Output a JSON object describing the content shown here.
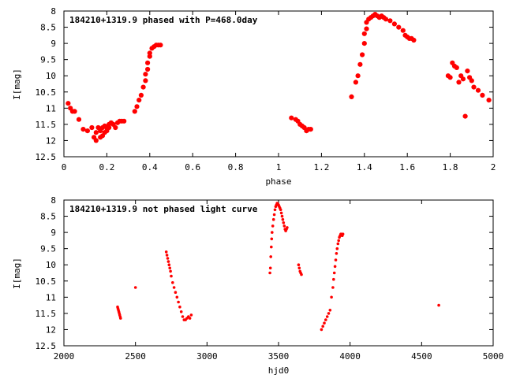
{
  "chart_data": [
    {
      "type": "scatter",
      "title": "184210+1319.9 phased with P=468.0day",
      "xlabel": "phase",
      "ylabel": "I[mag]",
      "xlim": [
        0,
        2
      ],
      "ylim": [
        12.5,
        8
      ],
      "y_inverted": true,
      "grid": false,
      "marker_color": "#ff0000",
      "xticks": [
        "0",
        "0.2",
        "0.4",
        "0.6",
        "0.8",
        "1",
        "1.2",
        "1.4",
        "1.6",
        "1.8",
        "2"
      ],
      "yticks": [
        "8",
        "8.5",
        "9",
        "9.5",
        "10",
        "10.5",
        "11",
        "11.5",
        "12",
        "12.5"
      ],
      "series": [
        {
          "x": [
            0.02,
            0.03,
            0.04,
            0.05,
            0.07,
            0.09,
            0.11,
            0.13,
            0.14,
            0.15,
            0.15,
            0.16,
            0.17,
            0.17,
            0.18,
            0.18,
            0.19,
            0.19,
            0.2,
            0.2,
            0.21,
            0.21,
            0.22,
            0.23,
            0.24,
            0.25,
            0.26,
            0.27,
            0.28,
            0.33,
            0.34,
            0.35,
            0.36,
            0.37,
            0.38,
            0.38,
            0.39,
            0.39,
            0.4,
            0.4,
            0.41,
            0.42,
            0.43,
            0.44,
            0.45,
            1.06,
            1.08,
            1.09,
            1.1,
            1.11,
            1.12,
            1.13,
            1.14,
            1.15,
            1.34,
            1.36,
            1.37,
            1.38,
            1.39,
            1.4,
            1.4,
            1.41,
            1.41,
            1.42,
            1.43,
            1.44,
            1.45,
            1.46,
            1.47,
            1.48,
            1.49,
            1.5,
            1.52,
            1.54,
            1.56,
            1.58,
            1.59,
            1.6,
            1.61,
            1.62,
            1.63,
            1.79,
            1.8,
            1.81,
            1.82,
            1.83,
            1.84,
            1.85,
            1.86,
            1.87,
            1.88,
            1.89,
            1.9,
            1.91,
            1.93,
            1.95,
            1.98
          ],
          "y": [
            10.85,
            11.0,
            11.1,
            11.1,
            11.35,
            11.65,
            11.7,
            11.6,
            11.9,
            12.0,
            11.75,
            11.6,
            11.9,
            11.7,
            11.6,
            11.85,
            11.75,
            11.55,
            11.7,
            11.6,
            11.6,
            11.5,
            11.45,
            11.5,
            11.6,
            11.45,
            11.4,
            11.4,
            11.4,
            11.1,
            10.95,
            10.75,
            10.6,
            10.35,
            10.15,
            9.95,
            9.8,
            9.6,
            9.4,
            9.3,
            9.15,
            9.1,
            9.05,
            9.05,
            9.05,
            11.3,
            11.35,
            11.4,
            11.5,
            11.55,
            11.6,
            11.7,
            11.65,
            11.65,
            10.65,
            10.2,
            10.0,
            9.65,
            9.35,
            9.0,
            8.7,
            8.55,
            8.35,
            8.25,
            8.2,
            8.15,
            8.1,
            8.15,
            8.2,
            8.15,
            8.2,
            8.25,
            8.3,
            8.4,
            8.5,
            8.6,
            8.75,
            8.8,
            8.85,
            8.85,
            8.9,
            10.0,
            10.05,
            9.6,
            9.7,
            9.75,
            10.2,
            10.0,
            10.1,
            11.25,
            9.85,
            10.05,
            10.15,
            10.35,
            10.45,
            10.6,
            10.75
          ]
        }
      ]
    },
    {
      "type": "scatter",
      "title": "184210+1319.9 not phased light curve",
      "xlabel": "hjd0",
      "ylabel": "I[mag]",
      "xlim": [
        2000,
        5000
      ],
      "ylim": [
        12.5,
        8
      ],
      "y_inverted": true,
      "grid": false,
      "marker_color": "#ff0000",
      "xticks": [
        "2000",
        "2500",
        "3000",
        "3500",
        "4000",
        "4500",
        "5000"
      ],
      "yticks": [
        "8",
        "8.5",
        "9",
        "9.5",
        "10",
        "10.5",
        "11",
        "11.5",
        "12",
        "12.5"
      ],
      "series": [
        {
          "x": [
            2375,
            2378,
            2381,
            2384,
            2387,
            2390,
            2393,
            2396,
            2500,
            2715,
            2720,
            2725,
            2730,
            2735,
            2740,
            2745,
            2750,
            2760,
            2770,
            2780,
            2790,
            2800,
            2810,
            2820,
            2830,
            2840,
            2850,
            2860,
            2870,
            2880,
            2890,
            3440,
            3443,
            3446,
            3449,
            3452,
            3455,
            3460,
            3465,
            3470,
            3475,
            3480,
            3485,
            3490,
            3495,
            3500,
            3505,
            3510,
            3515,
            3520,
            3525,
            3530,
            3535,
            3540,
            3545,
            3550,
            3555,
            3560,
            3640,
            3645,
            3650,
            3655,
            3660,
            3800,
            3810,
            3820,
            3830,
            3840,
            3850,
            3860,
            3870,
            3880,
            3885,
            3890,
            3895,
            3900,
            3905,
            3910,
            3915,
            3920,
            3925,
            3930,
            3935,
            3940,
            3945,
            3950,
            4620
          ],
          "y": [
            11.3,
            11.35,
            11.4,
            11.45,
            11.5,
            11.55,
            11.6,
            11.65,
            10.7,
            9.6,
            9.7,
            9.8,
            9.9,
            10.0,
            10.1,
            10.2,
            10.35,
            10.55,
            10.7,
            10.85,
            11.0,
            11.15,
            11.3,
            11.45,
            11.6,
            11.7,
            11.7,
            11.65,
            11.6,
            11.65,
            11.55,
            10.25,
            10.1,
            9.75,
            9.45,
            9.2,
            9.0,
            8.8,
            8.6,
            8.45,
            8.3,
            8.2,
            8.15,
            8.1,
            8.12,
            8.15,
            8.2,
            8.25,
            8.3,
            8.4,
            8.5,
            8.6,
            8.7,
            8.8,
            8.9,
            8.95,
            8.9,
            8.85,
            10.0,
            10.1,
            10.2,
            10.25,
            10.3,
            12.0,
            11.9,
            11.8,
            11.7,
            11.6,
            11.5,
            11.4,
            11.0,
            10.7,
            10.45,
            10.25,
            10.05,
            9.85,
            9.65,
            9.5,
            9.35,
            9.25,
            9.15,
            9.1,
            9.05,
            9.05,
            9.1,
            9.05,
            11.25
          ]
        }
      ]
    }
  ]
}
